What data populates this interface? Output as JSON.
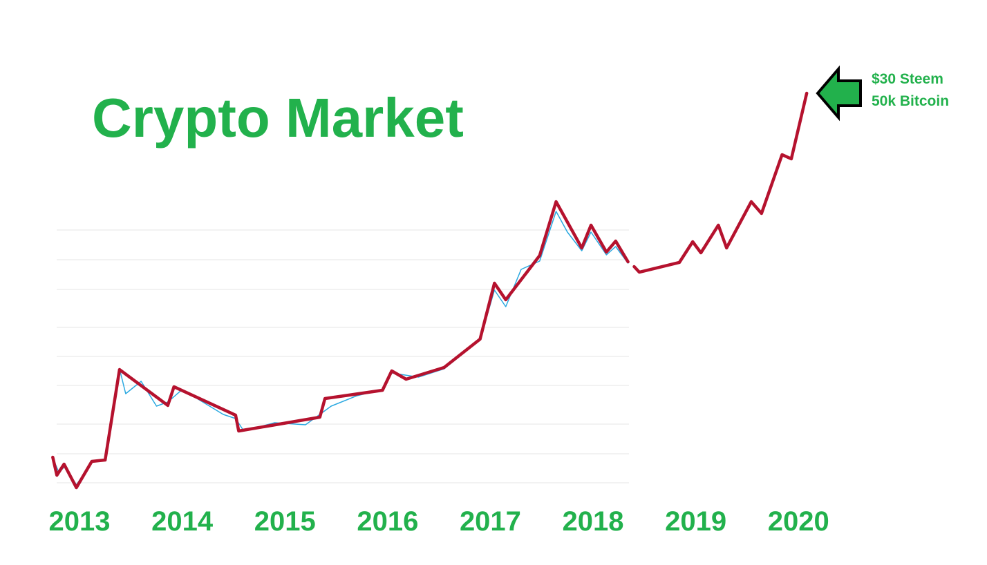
{
  "chart_data": {
    "type": "line",
    "title": "Crypto Market",
    "annotations": [
      "$30 Steem",
      "50k Bitcoin"
    ],
    "xlim": [
      2012.7,
      2020.2
    ],
    "xticks": [
      2013,
      2014,
      2015,
      2016,
      2017,
      2018,
      2019,
      2020
    ],
    "ylim": [
      0,
      100
    ],
    "gridlines": [
      64.5,
      57.33,
      50.17,
      41,
      34,
      27,
      17.67,
      10.5,
      3.5
    ],
    "grid_color": "#e6e6e6",
    "series": [
      {
        "color": "#29a8e0",
        "x": [
          2012.74,
          2012.8,
          2012.86,
          2012.97,
          2013.12,
          2013.25,
          2013.39,
          2013.45,
          2013.6,
          2013.75,
          2013.86,
          2014.0,
          2014.2,
          2014.4,
          2014.52,
          2014.6,
          2014.9,
          2015.2,
          2015.34,
          2015.45,
          2015.7,
          2015.95,
          2016.04,
          2016.3,
          2016.55,
          2016.65,
          2016.9,
          2017.04,
          2017.15,
          2017.3,
          2017.48,
          2017.64,
          2017.75,
          2017.89,
          2017.98,
          2018.13,
          2018.22,
          2018.34
        ],
        "values": [
          9.5,
          6,
          7.5,
          3,
          8.5,
          9,
          31,
          25,
          28,
          22,
          23,
          26,
          23,
          20,
          19,
          16,
          18,
          17.5,
          20,
          22,
          24.5,
          26,
          30,
          29,
          31,
          33,
          38,
          50,
          46,
          55,
          57,
          69,
          64,
          59.5,
          64,
          58.5,
          60.5,
          56.5
        ]
      },
      {
        "color": "#b5122e",
        "x": [
          2012.74,
          2012.78,
          2012.85,
          2012.97,
          2013.12,
          2013.25,
          2013.39,
          2013.86,
          2013.92,
          2014.52,
          2014.55,
          2015.34,
          2015.39,
          2015.95,
          2016.04,
          2016.18,
          2016.55,
          2016.9,
          2017.04,
          2017.15,
          2017.48,
          2017.64,
          2017.89,
          2017.98,
          2018.13,
          2018.22,
          2018.34,
          2018.37,
          2018.4,
          2018.45,
          2018.84,
          2018.97,
          2019.05,
          2019.22,
          2019.3,
          2019.54,
          2019.64,
          2019.84,
          2019.93,
          2020.08
        ],
        "values": [
          9.67,
          5.33,
          8,
          2.33,
          8.67,
          9,
          30.83,
          22.17,
          26.67,
          19.83,
          16,
          19.33,
          23.83,
          25.83,
          30.5,
          28.5,
          31.33,
          38.17,
          51.67,
          47.67,
          58.33,
          71.33,
          60.17,
          65.67,
          59.17,
          61.83,
          56.83,
          null,
          55.67,
          54.33,
          56.67,
          61.67,
          59,
          65.67,
          60.17,
          71.33,
          68.5,
          82.67,
          81.67,
          97.5
        ]
      }
    ]
  }
}
